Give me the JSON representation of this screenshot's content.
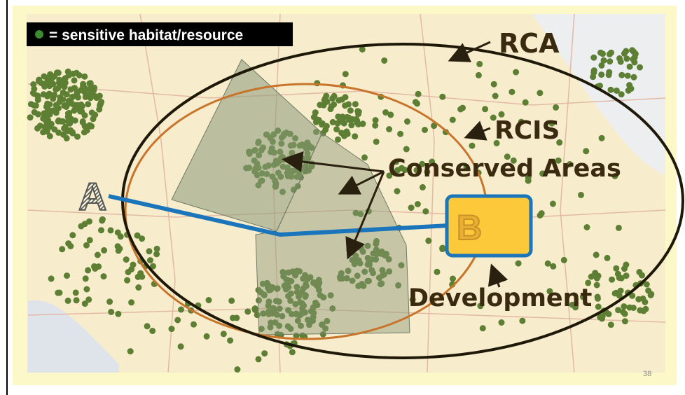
{
  "legend": {
    "label": "= sensitive habitat/resource"
  },
  "labels": {
    "rca": "RCA",
    "rcis": "RCIS",
    "conserved": "Conserved Areas",
    "development": "Development",
    "point_a": "A",
    "point_b": "B"
  },
  "slide_number": "38"
}
